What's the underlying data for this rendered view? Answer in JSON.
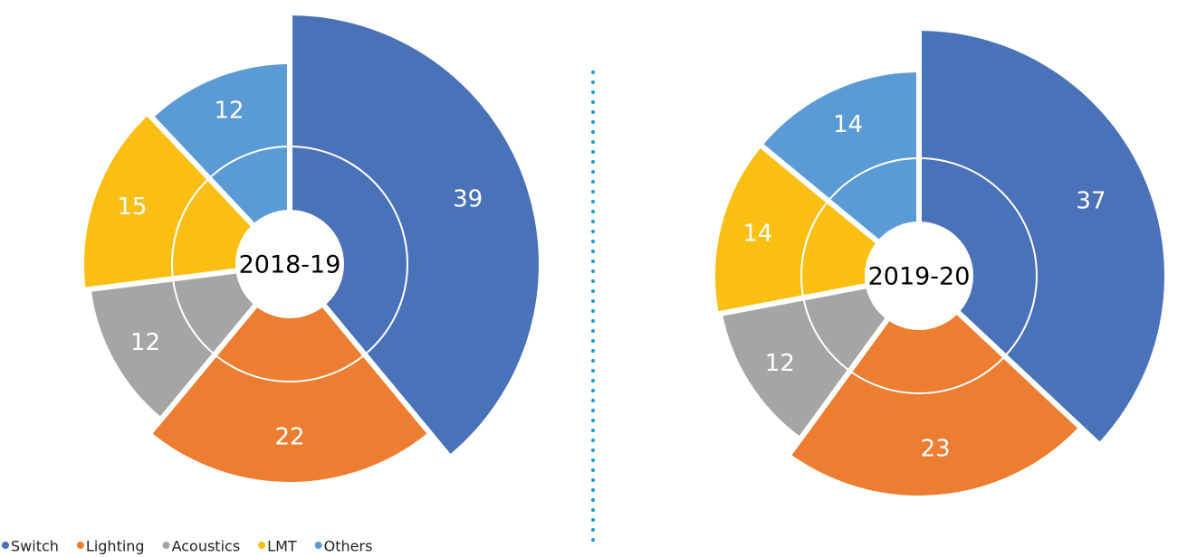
{
  "legend": {
    "items": [
      {
        "name": "Switch",
        "color": "#4a72b8"
      },
      {
        "name": "Lighting",
        "color": "#ed7d31"
      },
      {
        "name": "Acoustics",
        "color": "#a5a5a5"
      },
      {
        "name": "LMT",
        "color": "#fbbf14"
      },
      {
        "name": "Others",
        "color": "#5b9bd5"
      }
    ]
  },
  "chart_data": [
    {
      "type": "pie",
      "title": "2018-19",
      "values": [
        39,
        22,
        12,
        15,
        12
      ]
    },
    {
      "type": "pie",
      "title": "2019-20",
      "values": [
        37,
        23,
        12,
        14,
        14
      ]
    }
  ]
}
